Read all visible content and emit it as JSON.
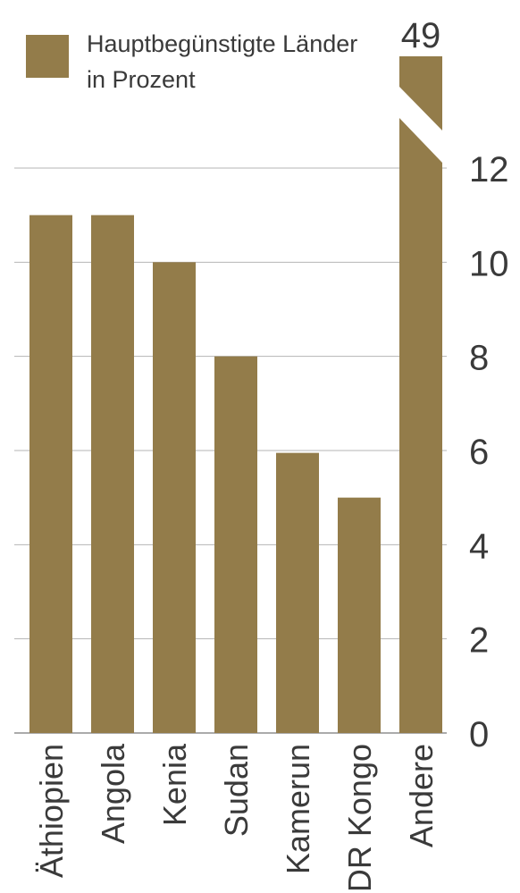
{
  "chart_data": {
    "type": "bar",
    "legend": {
      "line1": "Hauptbegünstigte Länder",
      "line2": "in Prozent",
      "placement": "top-left"
    },
    "categories": [
      "Äthiopien",
      "Angola",
      "Kenia",
      "Sudan",
      "Kamerun",
      "DR Kongo",
      "Andere"
    ],
    "values": [
      11,
      11,
      10,
      8,
      5.95,
      5,
      49
    ],
    "ylim": [
      0,
      12
    ],
    "yticks": [
      0,
      2,
      4,
      6,
      8,
      10,
      12
    ],
    "ytick_labels": [
      "0",
      "2",
      "4",
      "6",
      "8",
      "10",
      "12"
    ],
    "axis_break": {
      "category": "Andere",
      "value_label": "49"
    },
    "grid": true,
    "y_axis_side": "right",
    "bar_color": "#937c4a",
    "grid_color": "#b5b5b5"
  }
}
